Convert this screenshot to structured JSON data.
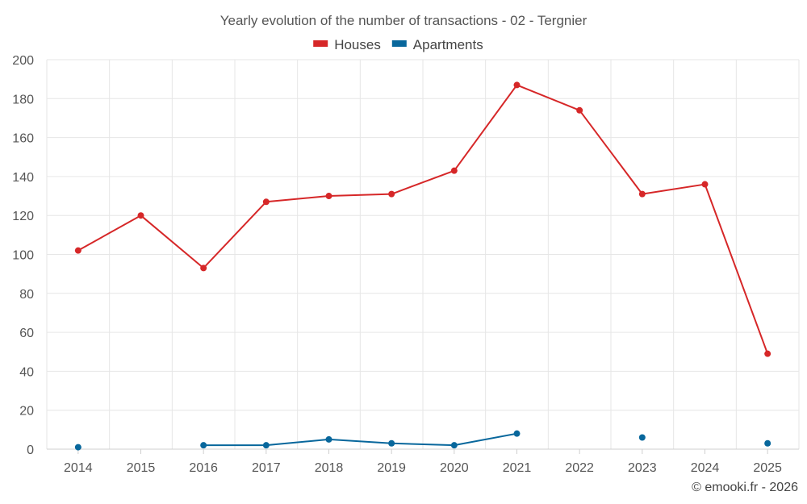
{
  "chart_data": {
    "type": "line",
    "title": "Yearly evolution of the number of transactions - 02 - Tergnier",
    "xlabel": "",
    "ylabel": "",
    "categories": [
      "2014",
      "2015",
      "2016",
      "2017",
      "2018",
      "2019",
      "2020",
      "2021",
      "2022",
      "2023",
      "2024",
      "2025"
    ],
    "ylim": [
      0,
      200
    ],
    "yticks": [
      0,
      20,
      40,
      60,
      80,
      100,
      120,
      140,
      160,
      180,
      200
    ],
    "grid": true,
    "legend_position": "top-center",
    "series": [
      {
        "name": "Houses",
        "color": "#d62728",
        "values": [
          102,
          120,
          93,
          127,
          130,
          131,
          143,
          187,
          174,
          131,
          136,
          49
        ]
      },
      {
        "name": "Apartments",
        "color": "#08679c",
        "values": [
          1,
          null,
          2,
          2,
          5,
          3,
          2,
          8,
          null,
          6,
          null,
          3
        ]
      }
    ]
  },
  "credit": "© emooki.fr - 2026"
}
